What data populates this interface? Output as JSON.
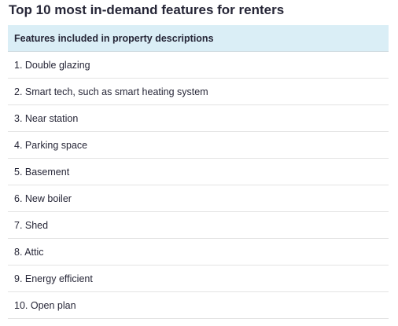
{
  "title": "Top 10 most in-demand features for renters",
  "table": {
    "header": "Features included in property descriptions",
    "rows": [
      "1. Double glazing",
      "2. Smart tech, such as smart heating system",
      "3. Near station",
      "4. Parking space",
      "5. Basement",
      "6. New boiler",
      "7. Shed",
      "8. Attic",
      "9. Energy efficient",
      "10. Open plan"
    ]
  },
  "colors": {
    "header_background": "#daeef6",
    "text": "#262637",
    "row_divider": "#e3e3e3"
  }
}
